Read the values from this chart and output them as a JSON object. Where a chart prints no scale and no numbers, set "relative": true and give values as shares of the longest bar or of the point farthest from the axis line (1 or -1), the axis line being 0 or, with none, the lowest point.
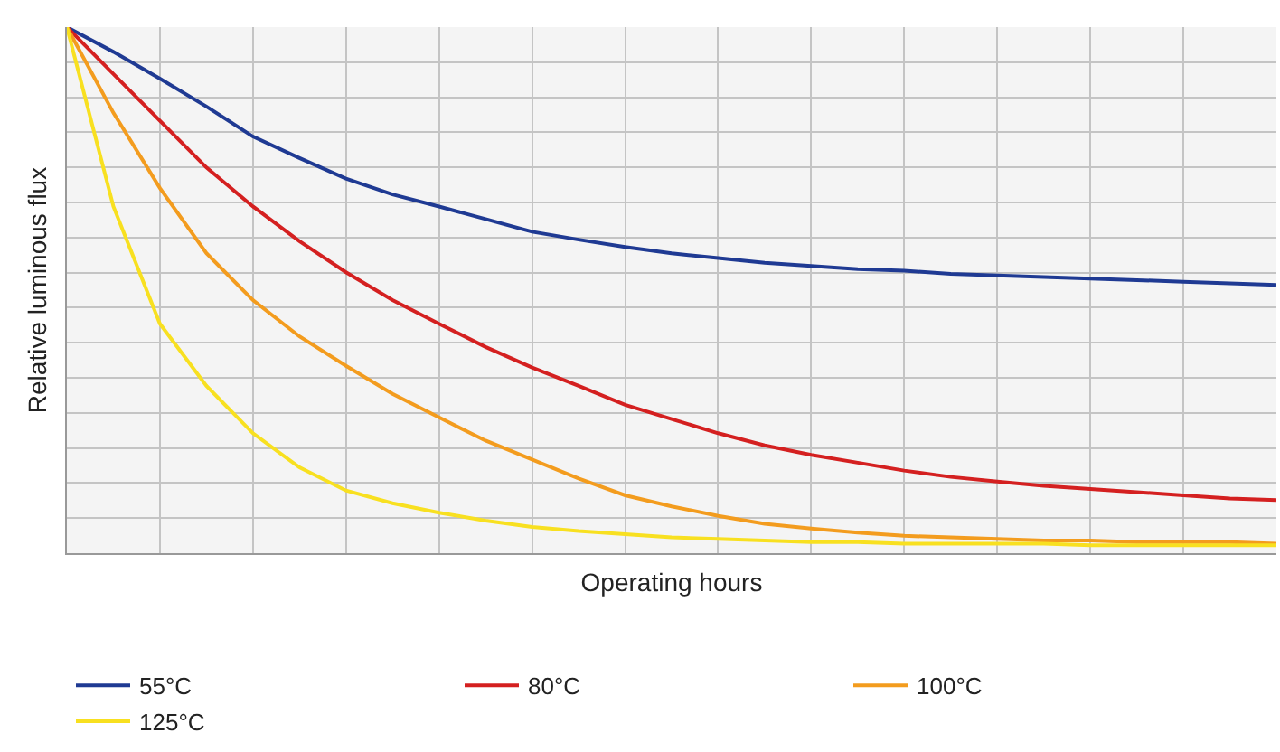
{
  "chart_data": {
    "type": "line",
    "xlabel": "Operating hours",
    "ylabel": "Relative luminous flux",
    "relative": true,
    "grid": true,
    "legend": "bottom",
    "marker": "none",
    "line_style": "solid",
    "categories": [
      null,
      null,
      null,
      null,
      null,
      null,
      null,
      null,
      null,
      null,
      null,
      null,
      null,
      null,
      null,
      null,
      null,
      null,
      null,
      null,
      null,
      null,
      null,
      null,
      null,
      null,
      null
    ],
    "series": [
      {
        "name": "55°C",
        "color": "#1f3a93",
        "values": [
          1,
          0.953,
          0.902,
          0.849,
          0.792,
          0.751,
          0.712,
          0.682,
          0.659,
          0.635,
          0.611,
          0.596,
          0.582,
          0.57,
          0.561,
          0.552,
          0.546,
          0.54,
          0.537,
          0.531,
          0.528,
          0.525,
          0.522,
          0.519,
          0.516,
          0.513,
          0.51
        ]
      },
      {
        "name": "80°C",
        "color": "#d42020",
        "values": [
          1,
          0.911,
          0.822,
          0.733,
          0.659,
          0.593,
          0.534,
          0.481,
          0.436,
          0.392,
          0.353,
          0.318,
          0.282,
          0.255,
          0.228,
          0.205,
          0.187,
          0.172,
          0.157,
          0.145,
          0.136,
          0.128,
          0.122,
          0.116,
          0.11,
          0.104,
          0.101
        ]
      },
      {
        "name": "100°C",
        "color": "#f39c1e",
        "values": [
          1,
          0.837,
          0.694,
          0.57,
          0.481,
          0.412,
          0.356,
          0.303,
          0.258,
          0.214,
          0.178,
          0.142,
          0.11,
          0.089,
          0.071,
          0.056,
          0.047,
          0.039,
          0.033,
          0.03,
          0.027,
          0.024,
          0.024,
          0.021,
          0.021,
          0.021,
          0.018
        ]
      },
      {
        "name": "125°C",
        "color": "#f8e020",
        "values": [
          1,
          0.659,
          0.436,
          0.318,
          0.228,
          0.163,
          0.119,
          0.095,
          0.077,
          0.062,
          0.05,
          0.042,
          0.036,
          0.03,
          0.027,
          0.024,
          0.021,
          0.021,
          0.018,
          0.018,
          0.018,
          0.018,
          0.015,
          0.015,
          0.015,
          0.015,
          0.015
        ]
      }
    ]
  }
}
